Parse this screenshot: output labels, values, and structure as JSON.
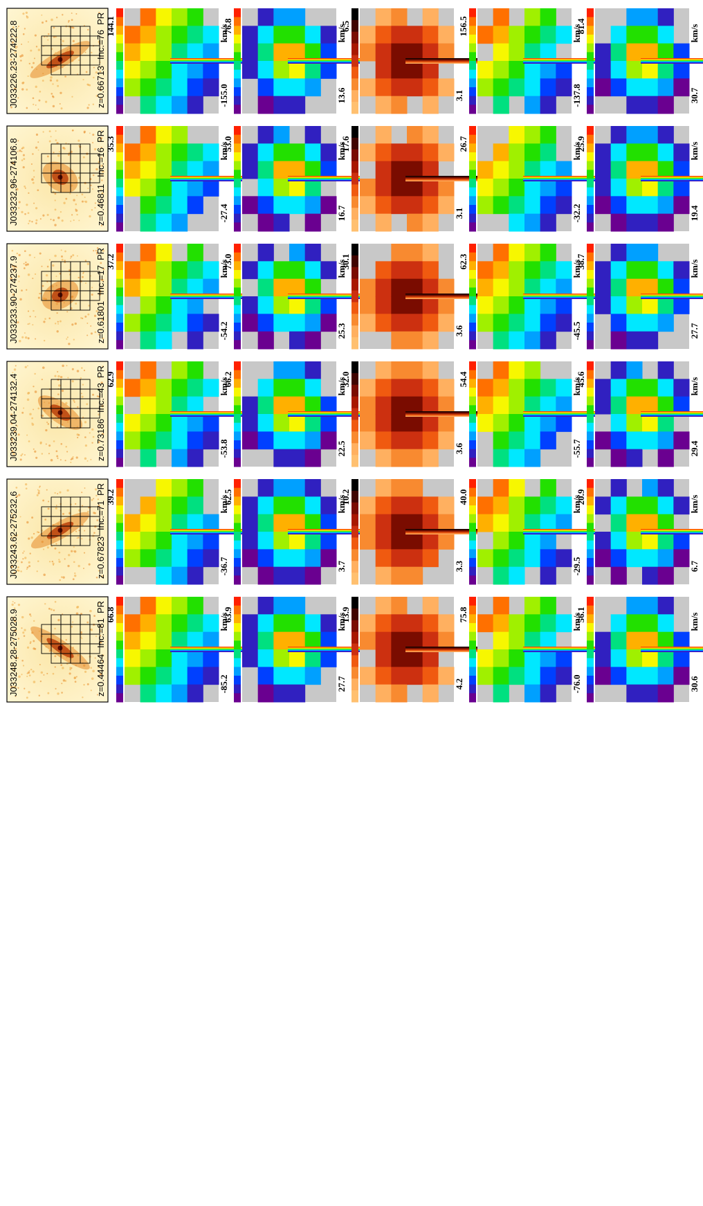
{
  "figure": {
    "unit_label": "km/s",
    "flag": "PR",
    "rows": [
      {
        "name": "J033226.23-274222.8",
        "inclination": "Inc.=76",
        "redshift": "z=0.66713",
        "maps": [
          {
            "kind": "velocity",
            "max": "144.1",
            "min": "-155.0"
          },
          {
            "kind": "dispersion",
            "max": "76.8",
            "min": "13.6"
          },
          {
            "kind": "flux",
            "max": "6.5",
            "min": "3.1"
          },
          {
            "kind": "velocity",
            "max": "156.5",
            "min": "-137.8"
          },
          {
            "kind": "dispersion",
            "max": "81.4",
            "min": "30.7"
          }
        ]
      },
      {
        "name": "J033232.96-274106.8",
        "inclination": "Inc.=16",
        "redshift": "z=0.46811",
        "maps": [
          {
            "kind": "velocity",
            "max": "35.3",
            "min": "-27.4"
          },
          {
            "kind": "dispersion",
            "max": "53.0",
            "min": "16.7"
          },
          {
            "kind": "flux",
            "max": "17.6",
            "min": "3.1"
          },
          {
            "kind": "velocity",
            "max": "26.7",
            "min": "-32.2"
          },
          {
            "kind": "dispersion",
            "max": "25.9",
            "min": "19.4"
          }
        ]
      },
      {
        "name": "J033233.90-274237.9",
        "inclination": "Inc.=17",
        "redshift": "z=0.61801",
        "maps": [
          {
            "kind": "velocity",
            "max": "37.2",
            "min": "-54.2"
          },
          {
            "kind": "dispersion",
            "max": "73.0",
            "min": "25.3"
          },
          {
            "kind": "flux",
            "max": "30.1",
            "min": "3.6"
          },
          {
            "kind": "velocity",
            "max": "62.3",
            "min": "-45.5"
          },
          {
            "kind": "dispersion",
            "max": "38.7",
            "min": "27.7"
          }
        ]
      },
      {
        "name": "J033239.04-274132.4",
        "inclination": "Inc.=43",
        "redshift": "z=0.73186",
        "maps": [
          {
            "kind": "velocity",
            "max": "62.9",
            "min": "-53.8"
          },
          {
            "kind": "dispersion",
            "max": "66.2",
            "min": "22.5"
          },
          {
            "kind": "flux",
            "max": "32.0",
            "min": "3.6"
          },
          {
            "kind": "velocity",
            "max": "54.4",
            "min": "-55.7"
          },
          {
            "kind": "dispersion",
            "max": "45.6",
            "min": "29.4"
          }
        ]
      },
      {
        "name": "J033243.62-275232.6",
        "inclination": "Inc.=71",
        "redshift": "z=0.67823",
        "maps": [
          {
            "kind": "velocity",
            "max": "39.2",
            "min": "-36.7"
          },
          {
            "kind": "dispersion",
            "max": "62.5",
            "min": "3.7"
          },
          {
            "kind": "flux",
            "max": "10.2",
            "min": "3.3"
          },
          {
            "kind": "velocity",
            "max": "40.0",
            "min": "-29.5"
          },
          {
            "kind": "dispersion",
            "max": "20.9",
            "min": "6.7"
          }
        ]
      },
      {
        "name": "J033248.28-275028.9",
        "inclination": "Inc.=81",
        "redshift": "z=0.44464",
        "maps": [
          {
            "kind": "velocity",
            "max": "66.8",
            "min": "-85.2"
          },
          {
            "kind": "dispersion",
            "max": "63.9",
            "min": "27.7"
          },
          {
            "kind": "flux",
            "max": "13.9",
            "min": "4.2"
          },
          {
            "kind": "velocity",
            "max": "75.8",
            "min": "-76.0"
          },
          {
            "kind": "dispersion",
            "max": "56.1",
            "min": "30.6"
          }
        ]
      }
    ]
  }
}
